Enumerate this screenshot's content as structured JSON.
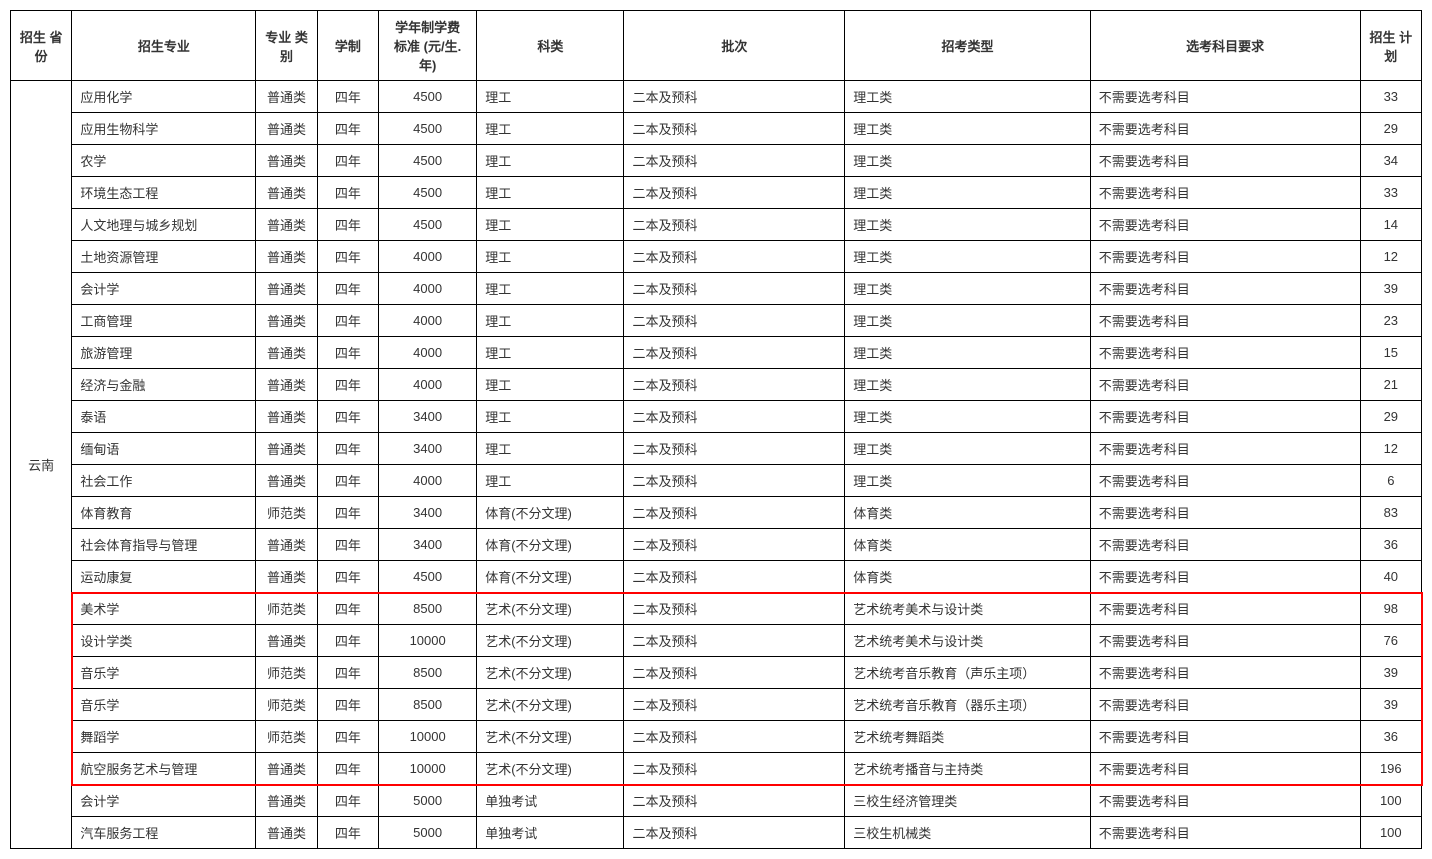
{
  "table": {
    "headers": {
      "province": "招生\n省份",
      "major": "招生专业",
      "category": "专业\n类别",
      "duration": "学制",
      "tuition": "学年制学费\n标准\n(元/生.年)",
      "subject": "科类",
      "batch": "批次",
      "type": "招考类型",
      "requirement": "选考科目要求",
      "plan": "招生\n计划"
    },
    "province": "云南",
    "rows": [
      {
        "major": "应用化学",
        "category": "普通类",
        "duration": "四年",
        "tuition": "4500",
        "subject": "理工",
        "batch": "二本及预科",
        "type": "理工类",
        "requirement": "不需要选考科目",
        "plan": "33",
        "highlight": false
      },
      {
        "major": "应用生物科学",
        "category": "普通类",
        "duration": "四年",
        "tuition": "4500",
        "subject": "理工",
        "batch": "二本及预科",
        "type": "理工类",
        "requirement": "不需要选考科目",
        "plan": "29",
        "highlight": false
      },
      {
        "major": "农学",
        "category": "普通类",
        "duration": "四年",
        "tuition": "4500",
        "subject": "理工",
        "batch": "二本及预科",
        "type": "理工类",
        "requirement": "不需要选考科目",
        "plan": "34",
        "highlight": false
      },
      {
        "major": "环境生态工程",
        "category": "普通类",
        "duration": "四年",
        "tuition": "4500",
        "subject": "理工",
        "batch": "二本及预科",
        "type": "理工类",
        "requirement": "不需要选考科目",
        "plan": "33",
        "highlight": false
      },
      {
        "major": "人文地理与城乡规划",
        "category": "普通类",
        "duration": "四年",
        "tuition": "4500",
        "subject": "理工",
        "batch": "二本及预科",
        "type": "理工类",
        "requirement": "不需要选考科目",
        "plan": "14",
        "highlight": false
      },
      {
        "major": "土地资源管理",
        "category": "普通类",
        "duration": "四年",
        "tuition": "4000",
        "subject": "理工",
        "batch": "二本及预科",
        "type": "理工类",
        "requirement": "不需要选考科目",
        "plan": "12",
        "highlight": false
      },
      {
        "major": "会计学",
        "category": "普通类",
        "duration": "四年",
        "tuition": "4000",
        "subject": "理工",
        "batch": "二本及预科",
        "type": "理工类",
        "requirement": "不需要选考科目",
        "plan": "39",
        "highlight": false
      },
      {
        "major": "工商管理",
        "category": "普通类",
        "duration": "四年",
        "tuition": "4000",
        "subject": "理工",
        "batch": "二本及预科",
        "type": "理工类",
        "requirement": "不需要选考科目",
        "plan": "23",
        "highlight": false
      },
      {
        "major": "旅游管理",
        "category": "普通类",
        "duration": "四年",
        "tuition": "4000",
        "subject": "理工",
        "batch": "二本及预科",
        "type": "理工类",
        "requirement": "不需要选考科目",
        "plan": "15",
        "highlight": false
      },
      {
        "major": "经济与金融",
        "category": "普通类",
        "duration": "四年",
        "tuition": "4000",
        "subject": "理工",
        "batch": "二本及预科",
        "type": "理工类",
        "requirement": "不需要选考科目",
        "plan": "21",
        "highlight": false
      },
      {
        "major": "泰语",
        "category": "普通类",
        "duration": "四年",
        "tuition": "3400",
        "subject": "理工",
        "batch": "二本及预科",
        "type": "理工类",
        "requirement": "不需要选考科目",
        "plan": "29",
        "highlight": false
      },
      {
        "major": "缅甸语",
        "category": "普通类",
        "duration": "四年",
        "tuition": "3400",
        "subject": "理工",
        "batch": "二本及预科",
        "type": "理工类",
        "requirement": "不需要选考科目",
        "plan": "12",
        "highlight": false
      },
      {
        "major": "社会工作",
        "category": "普通类",
        "duration": "四年",
        "tuition": "4000",
        "subject": "理工",
        "batch": "二本及预科",
        "type": "理工类",
        "requirement": "不需要选考科目",
        "plan": "6",
        "highlight": false
      },
      {
        "major": "体育教育",
        "category": "师范类",
        "duration": "四年",
        "tuition": "3400",
        "subject": "体育(不分文理)",
        "batch": "二本及预科",
        "type": "体育类",
        "requirement": "不需要选考科目",
        "plan": "83",
        "highlight": false
      },
      {
        "major": "社会体育指导与管理",
        "category": "普通类",
        "duration": "四年",
        "tuition": "3400",
        "subject": "体育(不分文理)",
        "batch": "二本及预科",
        "type": "体育类",
        "requirement": "不需要选考科目",
        "plan": "36",
        "highlight": false
      },
      {
        "major": "运动康复",
        "category": "普通类",
        "duration": "四年",
        "tuition": "4500",
        "subject": "体育(不分文理)",
        "batch": "二本及预科",
        "type": "体育类",
        "requirement": "不需要选考科目",
        "plan": "40",
        "highlight": false
      },
      {
        "major": "美术学",
        "category": "师范类",
        "duration": "四年",
        "tuition": "8500",
        "subject": "艺术(不分文理)",
        "batch": "二本及预科",
        "type": "艺术统考美术与设计类",
        "requirement": "不需要选考科目",
        "plan": "98",
        "highlight": true
      },
      {
        "major": "设计学类",
        "category": "普通类",
        "duration": "四年",
        "tuition": "10000",
        "subject": "艺术(不分文理)",
        "batch": "二本及预科",
        "type": "艺术统考美术与设计类",
        "requirement": "不需要选考科目",
        "plan": "76",
        "highlight": true
      },
      {
        "major": "音乐学",
        "category": "师范类",
        "duration": "四年",
        "tuition": "8500",
        "subject": "艺术(不分文理)",
        "batch": "二本及预科",
        "type": "艺术统考音乐教育（声乐主项）",
        "requirement": "不需要选考科目",
        "plan": "39",
        "highlight": true
      },
      {
        "major": "音乐学",
        "category": "师范类",
        "duration": "四年",
        "tuition": "8500",
        "subject": "艺术(不分文理)",
        "batch": "二本及预科",
        "type": "艺术统考音乐教育（器乐主项）",
        "requirement": "不需要选考科目",
        "plan": "39",
        "highlight": true
      },
      {
        "major": "舞蹈学",
        "category": "师范类",
        "duration": "四年",
        "tuition": "10000",
        "subject": "艺术(不分文理)",
        "batch": "二本及预科",
        "type": "艺术统考舞蹈类",
        "requirement": "不需要选考科目",
        "plan": "36",
        "highlight": true
      },
      {
        "major": "航空服务艺术与管理",
        "category": "普通类",
        "duration": "四年",
        "tuition": "10000",
        "subject": "艺术(不分文理)",
        "batch": "二本及预科",
        "type": "艺术统考播音与主持类",
        "requirement": "不需要选考科目",
        "plan": "196",
        "highlight": true
      },
      {
        "major": "会计学",
        "category": "普通类",
        "duration": "四年",
        "tuition": "5000",
        "subject": "单独考试",
        "batch": "二本及预科",
        "type": "三校生经济管理类",
        "requirement": "不需要选考科目",
        "plan": "100",
        "highlight": false
      },
      {
        "major": "汽车服务工程",
        "category": "普通类",
        "duration": "四年",
        "tuition": "5000",
        "subject": "单独考试",
        "batch": "二本及预科",
        "type": "三校生机械类",
        "requirement": "不需要选考科目",
        "plan": "100",
        "highlight": false
      }
    ],
    "highlight_color": "#ff0000"
  }
}
